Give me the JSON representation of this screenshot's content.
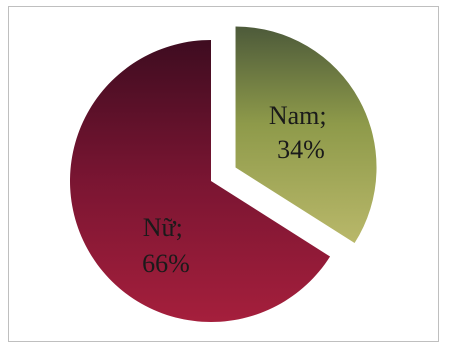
{
  "chart_data": {
    "type": "pie",
    "title": "",
    "slices": [
      {
        "label": "Nam; 34%",
        "value": 34,
        "line1": "Nam;",
        "line2": "34%",
        "exploded": true
      },
      {
        "label": "Nữ; 66%",
        "value": 66,
        "line1": "Nữ;",
        "line2": "66%",
        "exploded": false
      }
    ],
    "legend": "none"
  },
  "colors": {
    "nam_dark": "#4d5a3a",
    "nam_mid": "#8e9a4a",
    "nam_light": "#b9b86a",
    "nu_dark": "#3e0c20",
    "nu_mid": "#7a1532",
    "nu_light": "#a51f3c",
    "label_text": "#1a1a1a"
  }
}
